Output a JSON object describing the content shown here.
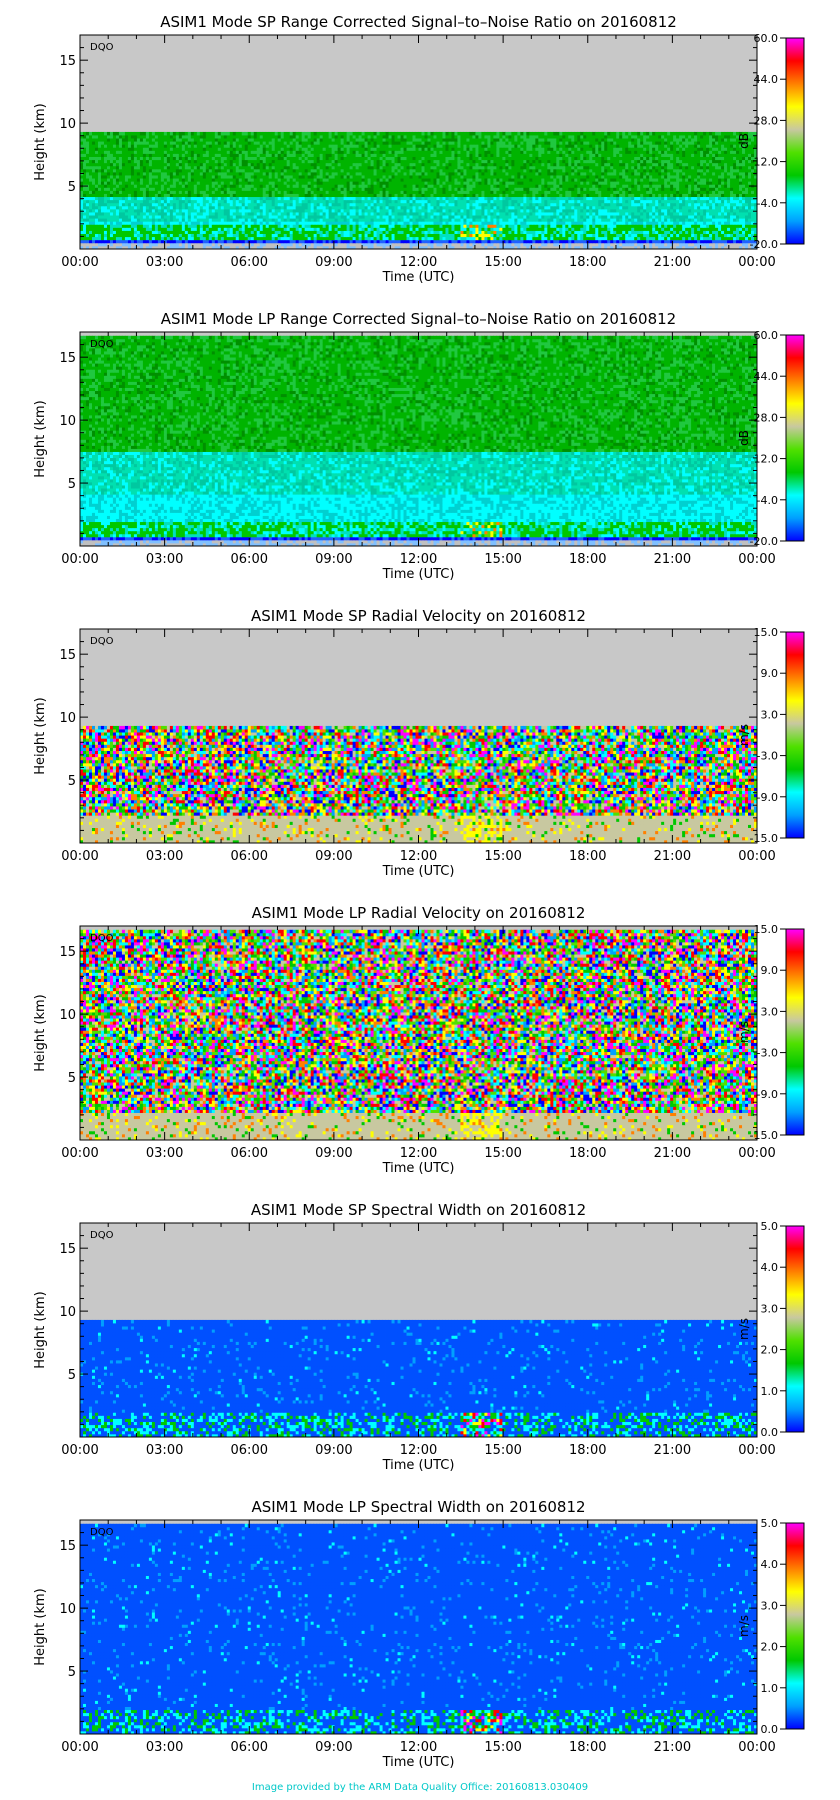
{
  "credit": "Image provided by the ARM Data Quality Office: 20160813.030409",
  "chart_data": [
    {
      "type": "heatmap",
      "title": "ASIM1 Mode SP Range Corrected Signal–to–Noise Ratio on 20160812",
      "xlabel": "Time (UTC)",
      "ylabel": "Height (km)",
      "flag": "DQO",
      "xticks": [
        "00:00",
        "03:00",
        "06:00",
        "09:00",
        "12:00",
        "15:00",
        "18:00",
        "21:00",
        "00:00"
      ],
      "xlim": [
        0,
        24
      ],
      "yticks": [
        5,
        10,
        15
      ],
      "ylim": [
        0,
        17
      ],
      "data_top_km": 9.3,
      "field": "snr",
      "colorbar": {
        "unit": "dB",
        "range": [
          -20,
          60
        ],
        "ticks": [
          "60.0",
          "44.0",
          "28.0",
          "12.0",
          "-4.0",
          "-20.0"
        ]
      }
    },
    {
      "type": "heatmap",
      "title": "ASIM1 Mode LP Range Corrected Signal–to–Noise Ratio on 20160812",
      "xlabel": "Time (UTC)",
      "ylabel": "Height (km)",
      "flag": "DQO",
      "xticks": [
        "00:00",
        "03:00",
        "06:00",
        "09:00",
        "12:00",
        "15:00",
        "18:00",
        "21:00",
        "00:00"
      ],
      "xlim": [
        0,
        24
      ],
      "yticks": [
        5,
        10,
        15
      ],
      "ylim": [
        0,
        17
      ],
      "data_top_km": 16.7,
      "field": "snr",
      "colorbar": {
        "unit": "dB",
        "range": [
          -20,
          60
        ],
        "ticks": [
          "60.0",
          "44.0",
          "28.0",
          "12.0",
          "-4.0",
          "-20.0"
        ]
      }
    },
    {
      "type": "heatmap",
      "title": "ASIM1 Mode SP Radial Velocity  on 20160812",
      "xlabel": "Time (UTC)",
      "ylabel": "Height (km)",
      "flag": "DQO",
      "xticks": [
        "00:00",
        "03:00",
        "06:00",
        "09:00",
        "12:00",
        "15:00",
        "18:00",
        "21:00",
        "00:00"
      ],
      "xlim": [
        0,
        24
      ],
      "yticks": [
        5,
        10,
        15
      ],
      "ylim": [
        0,
        17
      ],
      "data_top_km": 9.3,
      "field": "velocity",
      "colorbar": {
        "unit": "m/s",
        "range": [
          -15,
          15
        ],
        "ticks": [
          "15.0",
          "9.0",
          "3.0",
          "-3.0",
          "-9.0",
          "-15.0"
        ]
      }
    },
    {
      "type": "heatmap",
      "title": "ASIM1 Mode LP Radial Velocity  on 20160812",
      "xlabel": "Time (UTC)",
      "ylabel": "Height (km)",
      "flag": "DQO",
      "xticks": [
        "00:00",
        "03:00",
        "06:00",
        "09:00",
        "12:00",
        "15:00",
        "18:00",
        "21:00",
        "00:00"
      ],
      "xlim": [
        0,
        24
      ],
      "yticks": [
        5,
        10,
        15
      ],
      "ylim": [
        0,
        17
      ],
      "data_top_km": 16.7,
      "field": "velocity",
      "colorbar": {
        "unit": "m/s",
        "range": [
          -15,
          15
        ],
        "ticks": [
          "15.0",
          "9.0",
          "3.0",
          "-3.0",
          "-9.0",
          "-15.0"
        ]
      }
    },
    {
      "type": "heatmap",
      "title": "ASIM1 Mode SP Spectral Width  on 20160812",
      "xlabel": "Time (UTC)",
      "ylabel": "Height (km)",
      "flag": "DQO",
      "xticks": [
        "00:00",
        "03:00",
        "06:00",
        "09:00",
        "12:00",
        "15:00",
        "18:00",
        "21:00",
        "00:00"
      ],
      "xlim": [
        0,
        24
      ],
      "yticks": [
        5,
        10,
        15
      ],
      "ylim": [
        0,
        17
      ],
      "data_top_km": 9.3,
      "field": "width",
      "colorbar": {
        "unit": "m/s",
        "range": [
          0,
          5
        ],
        "ticks": [
          "5.0",
          "4.0",
          "3.0",
          "2.0",
          "1.0",
          "0.0"
        ]
      }
    },
    {
      "type": "heatmap",
      "title": "ASIM1 Mode LP Spectral Width  on 20160812",
      "xlabel": "Time (UTC)",
      "ylabel": "Height (km)",
      "flag": "DQO",
      "xticks": [
        "00:00",
        "03:00",
        "06:00",
        "09:00",
        "12:00",
        "15:00",
        "18:00",
        "21:00",
        "00:00"
      ],
      "xlim": [
        0,
        24
      ],
      "yticks": [
        5,
        10,
        15
      ],
      "ylim": [
        0,
        17
      ],
      "data_top_km": 16.7,
      "field": "width",
      "colorbar": {
        "unit": "m/s",
        "range": [
          0,
          5
        ],
        "ticks": [
          "5.0",
          "4.0",
          "3.0",
          "2.0",
          "1.0",
          "0.0"
        ]
      }
    }
  ],
  "colors": {
    "no_data": "#c8c8c8",
    "colormap": [
      "#0000ff",
      "#00a0ff",
      "#00ffff",
      "#00c800",
      "#50e000",
      "#c8c8a0",
      "#ffff00",
      "#ff8000",
      "#ff0000",
      "#ff00ff"
    ]
  }
}
